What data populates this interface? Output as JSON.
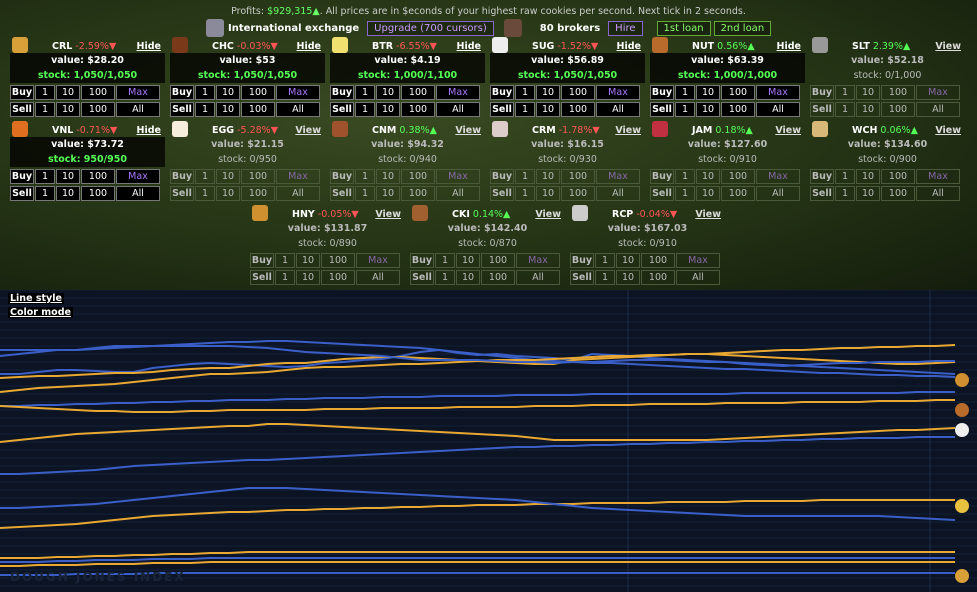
{
  "topline": {
    "prefix": "Profits: ",
    "profit": "$929,315",
    "arrow": "▲",
    "text": ". All prices are in $econds of your highest raw cookies per second. Next tick in 2 seconds."
  },
  "header": {
    "exchange": "International exchange",
    "upgrade": "Upgrade (700 cursors)",
    "brokers": "80 brokers",
    "hire": "Hire",
    "loan1": "1st loan",
    "loan2": "2nd loan"
  },
  "labels": {
    "buy": "Buy",
    "sell": "Sell",
    "n1": "1",
    "n10": "10",
    "n100": "100",
    "max": "Max",
    "all": "All"
  },
  "stocks": [
    {
      "sym": "CRL",
      "chg": "-2.59%▼",
      "dir": "d",
      "btn": "Hide",
      "value": "value: $28.20",
      "stock": "stock: 1,050/1,050",
      "owned": true,
      "color": "#d9a03a"
    },
    {
      "sym": "CHC",
      "chg": "-0.03%▼",
      "dir": "d",
      "btn": "Hide",
      "value": "value: $53",
      "stock": "stock: 1,050/1,050",
      "owned": true,
      "color": "#7a3a1a"
    },
    {
      "sym": "BTR",
      "chg": "-6.55%▼",
      "dir": "d",
      "btn": "Hide",
      "value": "value: $4.19",
      "stock": "stock: 1,000/1,100",
      "owned": true,
      "color": "#f0e070"
    },
    {
      "sym": "SUG",
      "chg": "-1.52%▼",
      "dir": "d",
      "btn": "Hide",
      "value": "value: $56.89",
      "stock": "stock: 1,050/1,050",
      "owned": true,
      "color": "#eeeeee"
    },
    {
      "sym": "NUT",
      "chg": "0.56%▲",
      "dir": "u",
      "btn": "Hide",
      "value": "value: $63.39",
      "stock": "stock: 1,000/1,000",
      "owned": true,
      "color": "#b86b2a"
    },
    {
      "sym": "SLT",
      "chg": "2.39%▲",
      "dir": "u",
      "btn": "View",
      "value": "value: $52.18",
      "stock": "stock: 0/1,000",
      "owned": false,
      "color": "#999999"
    },
    {
      "sym": "VNL",
      "chg": "-0.71%▼",
      "dir": "d",
      "btn": "Hide",
      "value": "value: $73.72",
      "stock": "stock: 950/950",
      "owned": true,
      "color": "#e07020"
    },
    {
      "sym": "EGG",
      "chg": "-5.28%▼",
      "dir": "d",
      "btn": "View",
      "value": "value: $21.15",
      "stock": "stock: 0/950",
      "owned": false,
      "color": "#f5eedd"
    },
    {
      "sym": "CNM",
      "chg": "0.38%▲",
      "dir": "u",
      "btn": "View",
      "value": "value: $94.32",
      "stock": "stock: 0/940",
      "owned": false,
      "color": "#a0522d"
    },
    {
      "sym": "CRM",
      "chg": "-1.78%▼",
      "dir": "d",
      "btn": "View",
      "value": "value: $16.15",
      "stock": "stock: 0/930",
      "owned": false,
      "color": "#ddcccc"
    },
    {
      "sym": "JAM",
      "chg": "0.18%▲",
      "dir": "u",
      "btn": "View",
      "value": "value: $127.60",
      "stock": "stock: 0/910",
      "owned": false,
      "color": "#c03040"
    },
    {
      "sym": "WCH",
      "chg": "0.06%▲",
      "dir": "u",
      "btn": "View",
      "value": "value: $134.60",
      "stock": "stock: 0/900",
      "owned": false,
      "color": "#d8b878"
    },
    {
      "sym": "HNY",
      "chg": "-0.05%▼",
      "dir": "d",
      "btn": "View",
      "value": "value: $131.87",
      "stock": "stock: 0/890",
      "owned": false,
      "color": "#d09030"
    },
    {
      "sym": "CKI",
      "chg": "0.14%▲",
      "dir": "u",
      "btn": "View",
      "value": "value: $142.40",
      "stock": "stock: 0/870",
      "owned": false,
      "color": "#a06030"
    },
    {
      "sym": "RCP",
      "chg": "-0.04%▼",
      "dir": "d",
      "btn": "View",
      "value": "value: $167.03",
      "stock": "stock: 0/910",
      "owned": false,
      "color": "#cccccc"
    }
  ],
  "chart": {
    "line_style": "Line style",
    "color_mode": "Color mode",
    "watermark": "DOUGH JONES INDEX"
  },
  "chart_data": {
    "type": "line",
    "title": "",
    "x": [
      0,
      1,
      2,
      3,
      4,
      5,
      6,
      7,
      8,
      9,
      10,
      11,
      12,
      13,
      14,
      15,
      16,
      17,
      18,
      19,
      20,
      21,
      22,
      23,
      24,
      25,
      26,
      27,
      28,
      29,
      30,
      31,
      32,
      33,
      34,
      35,
      36,
      37,
      38,
      39,
      40,
      41,
      42,
      43,
      44,
      45,
      46,
      47,
      48,
      49,
      50
    ],
    "series": [
      {
        "color": "#3a5fc8",
        "values": [
          84,
          84,
          82,
          80,
          80,
          81,
          82,
          82,
          78,
          76,
          74,
          73,
          74,
          75,
          76,
          77,
          76,
          73,
          72,
          70,
          69,
          66,
          62,
          60,
          63,
          65,
          64,
          66,
          67,
          68,
          70,
          64,
          65,
          66,
          68,
          69,
          70,
          71,
          72,
          73,
          74,
          75,
          76,
          77,
          78,
          79,
          80,
          81,
          82,
          83,
          84
        ]
      },
      {
        "color": "#e8a832",
        "values": [
          88,
          87,
          86,
          86,
          85,
          84,
          83,
          83,
          82,
          80,
          79,
          78,
          78,
          76,
          74,
          73,
          73,
          71,
          69,
          68,
          67,
          67,
          68,
          69,
          70,
          71,
          72,
          73,
          74,
          74,
          70,
          69,
          68,
          67,
          66,
          65,
          64,
          64,
          65,
          66,
          67,
          68,
          69,
          70,
          71,
          72,
          73,
          74,
          74,
          73,
          72
        ]
      },
      {
        "color": "#3a5fc8",
        "values": [
          60,
          60,
          60,
          60,
          60,
          59,
          58,
          57,
          56,
          55,
          54,
          53,
          52,
          52,
          51,
          51,
          52,
          53,
          54,
          55,
          56,
          57,
          58,
          60,
          62,
          64,
          66,
          68,
          70,
          71,
          72,
          73,
          73,
          74,
          75,
          76,
          77,
          78,
          79,
          79,
          80,
          81,
          82,
          83,
          83,
          84,
          85,
          85,
          86,
          86,
          87
        ]
      },
      {
        "color": "#e8a832",
        "values": [
          102,
          100,
          98,
          97,
          96,
          95,
          94,
          92,
          90,
          88,
          86,
          84,
          84,
          83,
          82,
          80,
          78,
          77,
          77,
          76,
          75,
          74,
          74,
          73,
          72,
          71,
          70,
          70,
          70,
          69,
          68,
          67,
          66,
          66,
          65,
          65,
          64,
          64,
          63,
          62,
          61,
          60,
          60,
          59,
          58,
          58,
          57,
          57,
          56,
          56,
          55
        ]
      },
      {
        "color": "#3a5fc8",
        "values": [
          116,
          116,
          115,
          115,
          114,
          114,
          113,
          113,
          112,
          112,
          111,
          111,
          110,
          110,
          110,
          109,
          109,
          108,
          108,
          108,
          107,
          107,
          107,
          106,
          106,
          106,
          106,
          105,
          105,
          105,
          105,
          104,
          104,
          104,
          104,
          104,
          104,
          104,
          104,
          103,
          103,
          103,
          103,
          103,
          103,
          103,
          103,
          103,
          102,
          102,
          102
        ]
      },
      {
        "color": "#3a5fc8",
        "values": [
          66,
          64,
          62,
          60,
          60,
          58,
          56,
          56,
          56,
          56,
          56,
          56,
          56,
          57,
          58,
          60,
          62,
          63,
          64,
          65,
          66,
          68,
          70,
          70,
          70,
          70,
          71,
          72,
          72,
          73,
          72,
          72,
          71,
          70,
          70,
          70,
          71,
          72,
          72,
          74,
          75,
          76,
          75,
          74,
          73,
          73,
          72,
          72,
          72,
          71,
          71
        ]
      },
      {
        "color": "#e8a832",
        "values": [
          116,
          117,
          118,
          119,
          120,
          121,
          121,
          122,
          122,
          122,
          121,
          121,
          120,
          120,
          120,
          120,
          120,
          119,
          119,
          119,
          118,
          118,
          118,
          118,
          117,
          117,
          117,
          117,
          116,
          116,
          116,
          115,
          115,
          115,
          114,
          114,
          114,
          114,
          113,
          113,
          113,
          113,
          112,
          112,
          112,
          112,
          111,
          111,
          111,
          110,
          110
        ]
      },
      {
        "color": "#e8a832",
        "values": [
          152,
          150,
          148,
          146,
          144,
          143,
          142,
          141,
          140,
          139,
          138,
          137,
          136,
          136,
          134,
          134,
          135,
          136,
          137,
          138,
          139,
          140,
          141,
          142,
          143,
          144,
          145,
          146,
          148,
          150,
          150,
          150,
          150,
          150,
          150,
          150,
          150,
          150,
          149,
          148,
          147,
          146,
          145,
          144,
          143,
          142,
          141,
          140,
          140,
          139,
          138
        ]
      },
      {
        "color": "#3a5fc8",
        "values": [
          184,
          184,
          183,
          182,
          181,
          180,
          178,
          176,
          175,
          174,
          173,
          172,
          171,
          170,
          170,
          169,
          168,
          167,
          166,
          165,
          164,
          163,
          162,
          161,
          160,
          159,
          158,
          157,
          157,
          156,
          156,
          155,
          155,
          154,
          154,
          153,
          153,
          152,
          152,
          151,
          151,
          150,
          150,
          149,
          149,
          148,
          148,
          148,
          147,
          147,
          147
        ]
      },
      {
        "color": "#e8a832",
        "values": [
          238,
          237,
          236,
          235,
          234,
          232,
          230,
          228,
          226,
          225,
          224,
          223,
          222,
          222,
          221,
          220,
          220,
          219,
          219,
          218,
          218,
          217,
          217,
          216,
          216,
          215,
          215,
          215,
          214,
          214,
          214,
          213,
          213,
          213,
          213,
          212,
          212,
          212,
          212,
          211,
          211,
          211,
          211,
          210,
          210,
          210,
          210,
          210,
          210,
          210,
          210
        ]
      },
      {
        "color": "#3a5fc8",
        "values": [
          218,
          218,
          217,
          216,
          215,
          214,
          212,
          210,
          208,
          206,
          204,
          202,
          200,
          198,
          198,
          198,
          199,
          200,
          201,
          202,
          203,
          204,
          205,
          206,
          207,
          208,
          209,
          210,
          212,
          214,
          216,
          218,
          219,
          220,
          221,
          222,
          223,
          224,
          225,
          226,
          226,
          226,
          226,
          226,
          226,
          226,
          226,
          227,
          228,
          229,
          230
        ]
      },
      {
        "color": "#e8a832",
        "values": [
          268,
          268,
          268,
          267,
          267,
          266,
          266,
          265,
          265,
          264,
          264,
          263,
          263,
          262,
          262,
          262,
          262,
          262,
          262,
          262,
          262,
          262,
          262,
          262,
          262,
          262,
          262,
          262,
          262,
          262,
          262,
          262,
          262,
          262,
          262,
          262,
          262,
          262,
          262,
          262,
          262,
          262,
          262,
          262,
          262,
          262,
          262,
          262,
          262,
          262,
          262
        ]
      },
      {
        "color": "#3a5fc8",
        "values": [
          272,
          272,
          272,
          271,
          271,
          270,
          270,
          270,
          269,
          269,
          269,
          268,
          268,
          268,
          268,
          268,
          268,
          268,
          268,
          268,
          268,
          268,
          268,
          268,
          268,
          268,
          268,
          268,
          268,
          268,
          268,
          268,
          268,
          268,
          268,
          268,
          268,
          268,
          268,
          268,
          268,
          268,
          268,
          268,
          268,
          268,
          268,
          268,
          268,
          268,
          268
        ]
      },
      {
        "color": "#e8a832",
        "values": [
          276,
          276,
          275,
          275,
          275,
          274,
          274,
          274,
          273,
          273,
          273,
          272,
          272,
          272,
          272,
          272,
          272,
          272,
          272,
          272,
          272,
          272,
          272,
          272,
          272,
          272,
          272,
          272,
          272,
          272,
          272,
          272,
          272,
          272,
          272,
          272,
          272,
          272,
          272,
          272,
          272,
          272,
          272,
          272,
          272,
          272,
          272,
          272,
          272,
          272,
          272
        ]
      },
      {
        "color": "#3a5fc8",
        "values": [
          285,
          285,
          285,
          285,
          284,
          284,
          284,
          284,
          283,
          283,
          283,
          283,
          283,
          283,
          283,
          283,
          283,
          283,
          283,
          283,
          283,
          283,
          283,
          283,
          283,
          283,
          283,
          283,
          283,
          283,
          283,
          283,
          283,
          283,
          283,
          283,
          283,
          283,
          283,
          283,
          283,
          283,
          283,
          283,
          283,
          283,
          283,
          283,
          283,
          283,
          283
        ]
      }
    ]
  }
}
